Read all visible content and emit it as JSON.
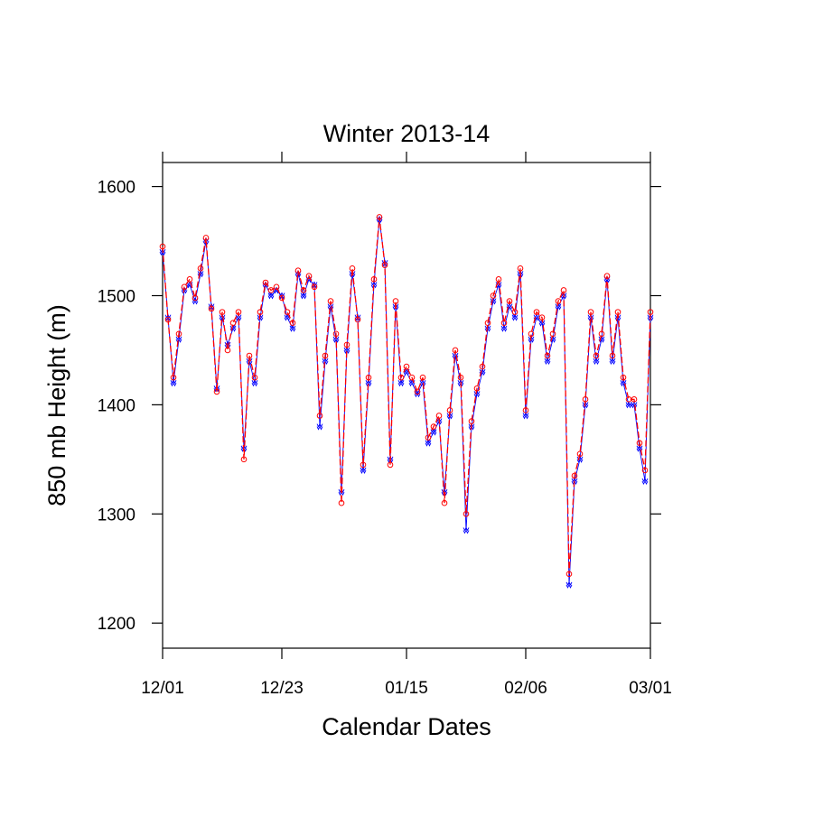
{
  "chart_data": {
    "type": "line",
    "title": "Winter 2013-14",
    "x_label": "Calendar Dates",
    "y_label": "850 mb Height (m)",
    "x": [
      0,
      1,
      2,
      3,
      4,
      5,
      6,
      7,
      8,
      9,
      10,
      11,
      12,
      13,
      14,
      15,
      16,
      17,
      18,
      19,
      20,
      21,
      22,
      23,
      24,
      25,
      26,
      27,
      28,
      29,
      30,
      31,
      32,
      33,
      34,
      35,
      36,
      37,
      38,
      39,
      40,
      41,
      42,
      43,
      44,
      45,
      46,
      47,
      48,
      49,
      50,
      51,
      52,
      53,
      54,
      55,
      56,
      57,
      58,
      59,
      60,
      61,
      62,
      63,
      64,
      65,
      66,
      67,
      68,
      69,
      70,
      71,
      72,
      73,
      74,
      75,
      76,
      77,
      78,
      79,
      80,
      81,
      82,
      83,
      84,
      85,
      86,
      87,
      88,
      89,
      90
    ],
    "series": [
      {
        "color": "#0000ff",
        "dash": "solid",
        "marker": "zigzag",
        "values": [
          1540,
          1480,
          1420,
          1460,
          1505,
          1510,
          1495,
          1520,
          1550,
          1490,
          1415,
          1480,
          1455,
          1470,
          1480,
          1360,
          1440,
          1420,
          1480,
          1510,
          1500,
          1505,
          1500,
          1480,
          1470,
          1520,
          1500,
          1515,
          1510,
          1380,
          1440,
          1490,
          1460,
          1320,
          1450,
          1520,
          1480,
          1340,
          1420,
          1510,
          1570,
          1530,
          1350,
          1490,
          1420,
          1430,
          1420,
          1410,
          1420,
          1365,
          1375,
          1385,
          1320,
          1390,
          1445,
          1420,
          1285,
          1380,
          1410,
          1430,
          1470,
          1495,
          1510,
          1470,
          1490,
          1480,
          1520,
          1390,
          1460,
          1480,
          1475,
          1440,
          1460,
          1490,
          1500,
          1235,
          1330,
          1350,
          1400,
          1480,
          1440,
          1460,
          1515,
          1440,
          1480,
          1420,
          1400,
          1400,
          1360,
          1330,
          1480
        ]
      },
      {
        "color": "#ff0000",
        "dash": "dashed",
        "marker": "circle",
        "values": [
          1545,
          1478,
          1425,
          1465,
          1508,
          1515,
          1498,
          1525,
          1553,
          1488,
          1412,
          1485,
          1450,
          1475,
          1485,
          1350,
          1445,
          1425,
          1485,
          1512,
          1505,
          1508,
          1498,
          1485,
          1475,
          1523,
          1505,
          1518,
          1508,
          1390,
          1445,
          1495,
          1465,
          1310,
          1455,
          1525,
          1478,
          1345,
          1425,
          1515,
          1572,
          1528,
          1345,
          1495,
          1425,
          1435,
          1425,
          1412,
          1425,
          1370,
          1380,
          1390,
          1310,
          1395,
          1450,
          1425,
          1300,
          1385,
          1415,
          1435,
          1475,
          1500,
          1515,
          1475,
          1495,
          1485,
          1525,
          1395,
          1465,
          1485,
          1480,
          1445,
          1465,
          1495,
          1505,
          1245,
          1335,
          1355,
          1405,
          1485,
          1445,
          1465,
          1518,
          1445,
          1485,
          1425,
          1405,
          1405,
          1365,
          1340,
          1485
        ]
      }
    ],
    "xlim": [
      0,
      90
    ],
    "xticks": [
      {
        "value": 0,
        "label": "12/01"
      },
      {
        "value": 22,
        "label": "12/23"
      },
      {
        "value": 45,
        "label": "01/15"
      },
      {
        "value": 67,
        "label": "02/06"
      },
      {
        "value": 90,
        "label": "03/01"
      }
    ],
    "ylim": [
      1177,
      1622
    ],
    "yticks": [
      1200,
      1300,
      1400,
      1500,
      1600
    ],
    "grid": false
  }
}
